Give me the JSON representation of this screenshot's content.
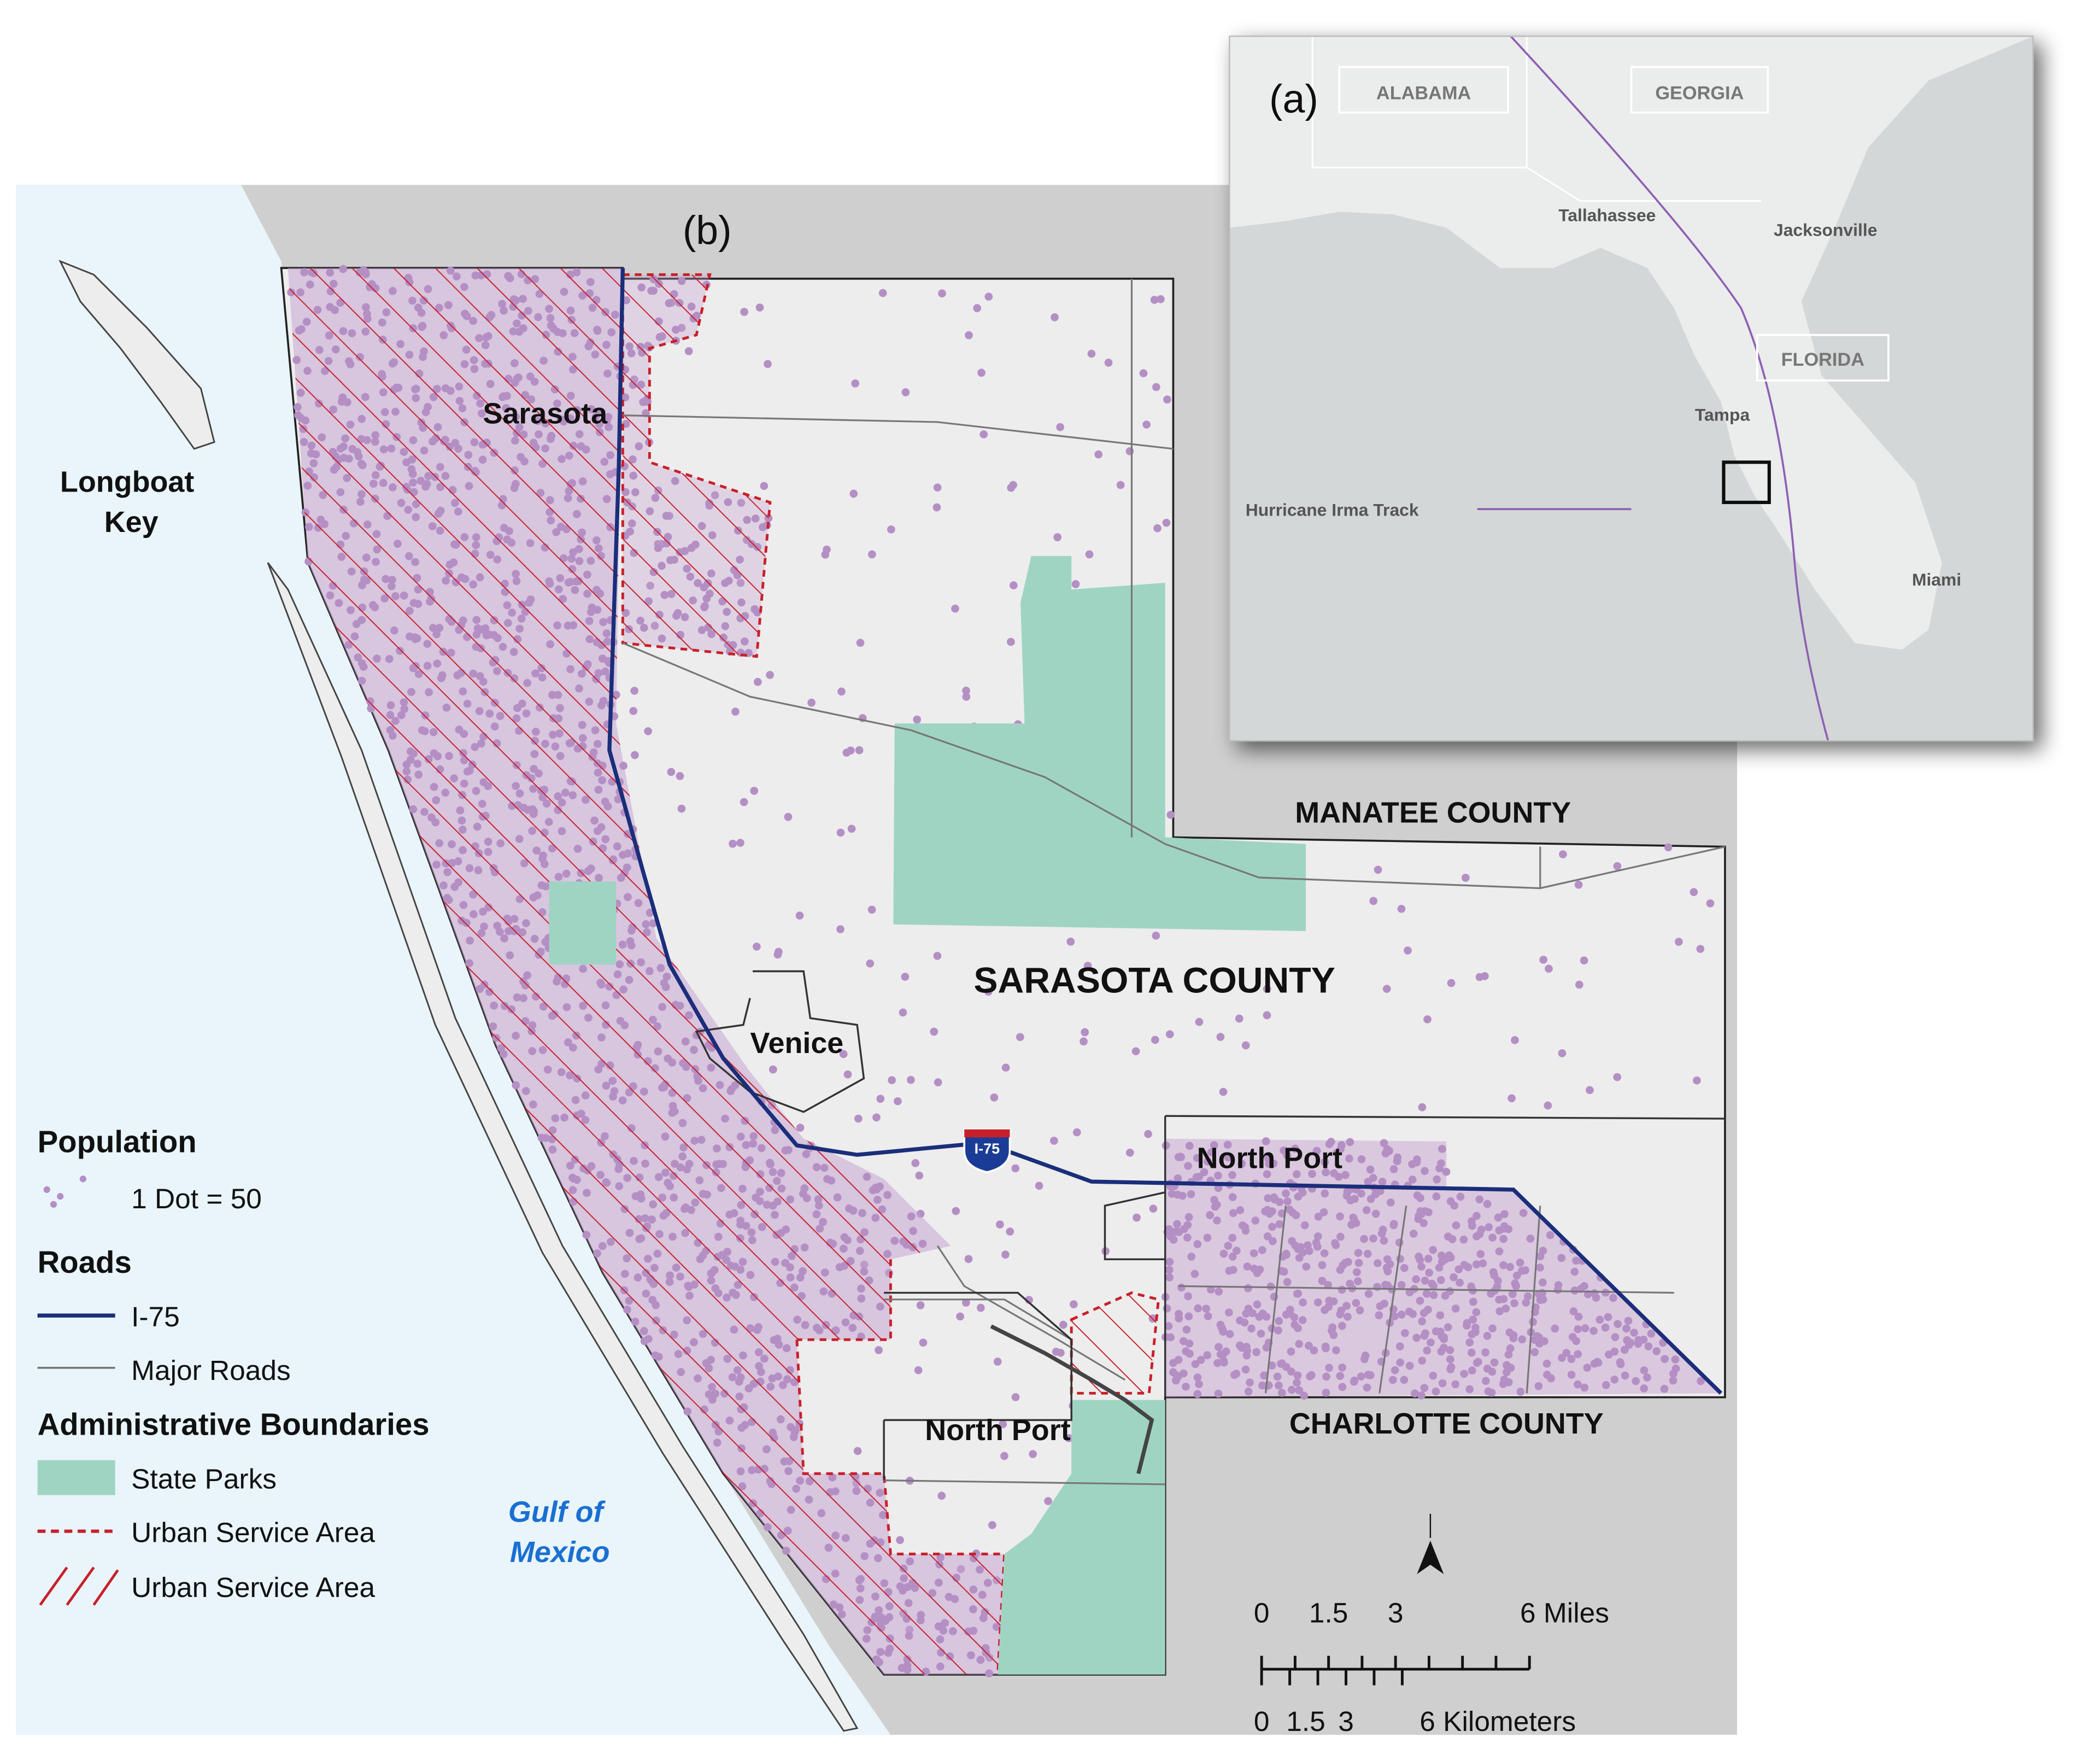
{
  "panel_labels": {
    "inset": "(a)",
    "main": "(b)"
  },
  "inset": {
    "states": [
      "ALABAMA",
      "GEORGIA",
      "FLORIDA"
    ],
    "cities": [
      "Tallahassee",
      "Jacksonville",
      "Tampa",
      "Miami"
    ],
    "track_label": "Hurricane Irma Track"
  },
  "map": {
    "places": {
      "longboat_key": [
        "Longboat",
        "Key"
      ],
      "sarasota": "Sarasota",
      "venice": "Venice",
      "north_port_east": "North Port",
      "north_port_south": "North Port"
    },
    "counties": [
      "SARASOTA COUNTY",
      "MANATEE COUNTY",
      "CHARLOTTE COUNTY"
    ],
    "water": [
      "Gulf of",
      "Mexico"
    ],
    "shield": "I-75"
  },
  "legend": {
    "population_title": "Population",
    "dot_label": "1 Dot = 50",
    "roads_title": "Roads",
    "interstate": "I-75",
    "major_roads": "Major Roads",
    "admin_title": "Administrative Boundaries",
    "state_parks": "State Parks",
    "urban_dashed": "Urban Service Area",
    "urban_hatched": "Urban Service Area"
  },
  "scale_bar": {
    "miles": [
      "0",
      "1.5",
      "3",
      "6 Miles"
    ],
    "kilometers": [
      "0",
      "1.5",
      "3",
      "6 Kilometers"
    ]
  }
}
